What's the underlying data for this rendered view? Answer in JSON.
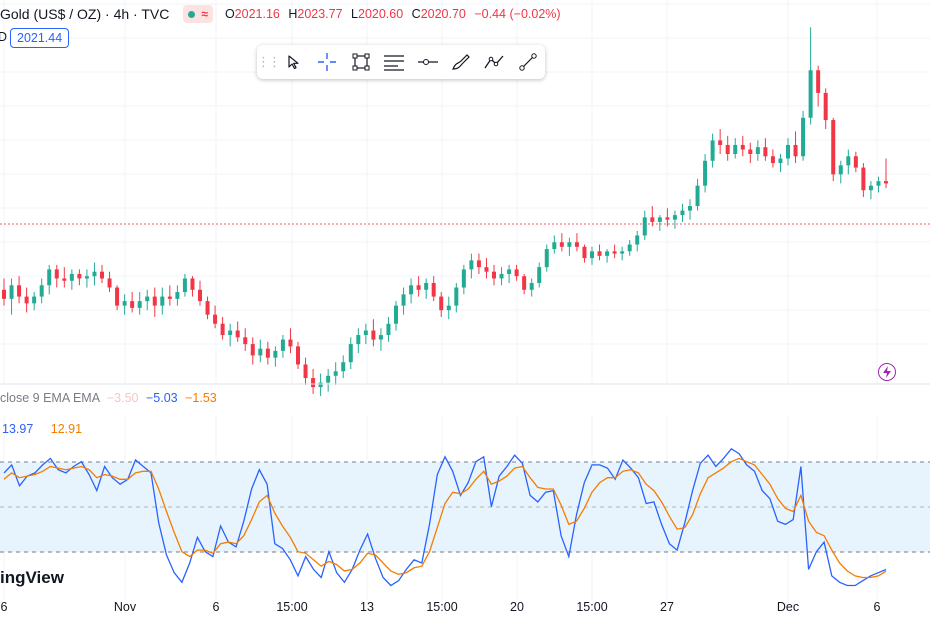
{
  "header": {
    "symbol_title": "Gold (US$ / OZ) · 4h · TVC",
    "ohlc": [
      {
        "k": "O",
        "v": "2021.16"
      },
      {
        "k": "H",
        "v": "2023.77"
      },
      {
        "k": "L",
        "v": "2020.60"
      },
      {
        "k": "C",
        "v": "2020.70"
      }
    ],
    "change": "−0.44 (−0.02%)",
    "last_price_prefix": "D",
    "last_price_tag": "2021.44"
  },
  "toolbar": {
    "tools": [
      "cursor-arrow-icon",
      "crosshair-icon",
      "rectangle-icon",
      "fib-levels-icon",
      "horizontal-ray-icon",
      "brush-icon",
      "path-icon",
      "trend-line-icon"
    ]
  },
  "indicator": {
    "legend_label": "close 9 EMA EMA",
    "legend_values": [
      "−3.50",
      "−5.03",
      "−1.53"
    ],
    "current_k": "13.97",
    "current_d": "12.91"
  },
  "brand": "ingView",
  "x_axis": {
    "labels": [
      "6",
      "Nov",
      "6",
      "15:00",
      "13",
      "15:00",
      "20",
      "15:00",
      "27",
      "Dec",
      "6"
    ]
  },
  "colors": {
    "up": "#22ab94",
    "down": "#f23645",
    "k_line": "#2962ff",
    "d_line": "#f57c00",
    "band_fill": "#e3f2fd",
    "accent": "#2962ff"
  },
  "chart_data": [
    {
      "type": "candlestick",
      "title": "Gold (US$ / OZ) · 4h · TVC",
      "grid": true,
      "ylim": [
        1938,
        2090
      ],
      "current_price": 2020.7,
      "candles": [
        [
          1973,
          1978,
          1966,
          1969
        ],
        [
          1969,
          1978,
          1962,
          1975
        ],
        [
          1975,
          1979,
          1967,
          1970
        ],
        [
          1970,
          1974,
          1963,
          1967
        ],
        [
          1967,
          1972,
          1964,
          1970
        ],
        [
          1970,
          1978,
          1967,
          1975
        ],
        [
          1975,
          1984,
          1971,
          1982
        ],
        [
          1982,
          1984,
          1974,
          1978
        ],
        [
          1978,
          1983,
          1974,
          1977
        ],
        [
          1977,
          1982,
          1973,
          1980
        ],
        [
          1980,
          1982,
          1975,
          1978
        ],
        [
          1978,
          1982,
          1974,
          1979
        ],
        [
          1979,
          1985,
          1975,
          1981
        ],
        [
          1981,
          1984,
          1976,
          1978
        ],
        [
          1978,
          1981,
          1972,
          1974
        ],
        [
          1974,
          1975,
          1964,
          1966
        ],
        [
          1966,
          1971,
          1962,
          1968
        ],
        [
          1968,
          1972,
          1963,
          1965
        ],
        [
          1965,
          1972,
          1962,
          1968
        ],
        [
          1968,
          1973,
          1964,
          1970
        ],
        [
          1970,
          1974,
          1961,
          1966
        ],
        [
          1966,
          1974,
          1962,
          1970
        ],
        [
          1970,
          1975,
          1966,
          1969
        ],
        [
          1969,
          1975,
          1966,
          1972
        ],
        [
          1972,
          1980,
          1970,
          1978
        ],
        [
          1978,
          1979,
          1970,
          1973
        ],
        [
          1973,
          1977,
          1966,
          1968
        ],
        [
          1968,
          1970,
          1960,
          1962
        ],
        [
          1962,
          1966,
          1956,
          1958
        ],
        [
          1958,
          1961,
          1951,
          1953
        ],
        [
          1953,
          1958,
          1948,
          1955
        ],
        [
          1955,
          1959,
          1950,
          1952
        ],
        [
          1952,
          1956,
          1946,
          1949
        ],
        [
          1949,
          1952,
          1940,
          1944
        ],
        [
          1944,
          1951,
          1941,
          1947
        ],
        [
          1947,
          1950,
          1940,
          1943
        ],
        [
          1943,
          1948,
          1939,
          1946
        ],
        [
          1946,
          1953,
          1943,
          1951
        ],
        [
          1951,
          1956,
          1945,
          1948
        ],
        [
          1948,
          1950,
          1938,
          1940
        ],
        [
          1940,
          1943,
          1931,
          1934
        ],
        [
          1934,
          1938,
          1927,
          1930
        ],
        [
          1930,
          1936,
          1926,
          1932
        ],
        [
          1932,
          1938,
          1928,
          1935
        ],
        [
          1935,
          1941,
          1931,
          1937
        ],
        [
          1937,
          1944,
          1934,
          1941
        ],
        [
          1941,
          1952,
          1938,
          1949
        ],
        [
          1949,
          1956,
          1945,
          1953
        ],
        [
          1953,
          1958,
          1949,
          1955
        ],
        [
          1955,
          1960,
          1948,
          1951
        ],
        [
          1951,
          1956,
          1946,
          1953
        ],
        [
          1953,
          1961,
          1950,
          1958
        ],
        [
          1958,
          1968,
          1955,
          1966
        ],
        [
          1966,
          1974,
          1962,
          1971
        ],
        [
          1971,
          1978,
          1967,
          1975
        ],
        [
          1975,
          1979,
          1970,
          1973
        ],
        [
          1973,
          1978,
          1969,
          1976
        ],
        [
          1976,
          1979,
          1968,
          1970
        ],
        [
          1970,
          1972,
          1961,
          1964
        ],
        [
          1964,
          1970,
          1960,
          1966
        ],
        [
          1966,
          1976,
          1963,
          1974
        ],
        [
          1974,
          1984,
          1971,
          1982
        ],
        [
          1982,
          1989,
          1978,
          1986
        ],
        [
          1986,
          1989,
          1980,
          1983
        ],
        [
          1983,
          1987,
          1978,
          1981
        ],
        [
          1981,
          1984,
          1975,
          1978
        ],
        [
          1978,
          1983,
          1975,
          1980
        ],
        [
          1980,
          1984,
          1976,
          1982
        ],
        [
          1982,
          1984,
          1977,
          1979
        ],
        [
          1979,
          1980,
          1971,
          1973
        ],
        [
          1973,
          1978,
          1970,
          1976
        ],
        [
          1976,
          1985,
          1974,
          1983
        ],
        [
          1983,
          1993,
          1981,
          1991
        ],
        [
          1991,
          1997,
          1989,
          1994
        ],
        [
          1994,
          1998,
          1990,
          1992
        ],
        [
          1992,
          1996,
          1988,
          1994
        ],
        [
          1994,
          1998,
          1990,
          1992
        ],
        [
          1992,
          1993,
          1985,
          1987
        ],
        [
          1987,
          1992,
          1984,
          1990
        ],
        [
          1990,
          1993,
          1986,
          1988
        ],
        [
          1988,
          1991,
          1985,
          1990
        ],
        [
          1990,
          1993,
          1987,
          1989
        ],
        [
          1989,
          1992,
          1986,
          1990
        ],
        [
          1990,
          1995,
          1988,
          1993
        ],
        [
          1993,
          1999,
          1990,
          1997
        ],
        [
          1997,
          2008,
          1995,
          2005
        ],
        [
          2005,
          2010,
          2001,
          2003
        ],
        [
          2003,
          2006,
          1999,
          2005
        ],
        [
          2005,
          2009,
          2001,
          2004
        ],
        [
          2004,
          2008,
          2000,
          2006
        ],
        [
          2006,
          2011,
          2003,
          2008
        ],
        [
          2008,
          2013,
          2004,
          2010
        ],
        [
          2010,
          2022,
          2008,
          2019
        ],
        [
          2019,
          2033,
          2016,
          2030
        ],
        [
          2030,
          2042,
          2027,
          2039
        ],
        [
          2039,
          2044,
          2033,
          2037
        ],
        [
          2037,
          2041,
          2030,
          2033
        ],
        [
          2033,
          2040,
          2031,
          2037
        ],
        [
          2037,
          2041,
          2032,
          2035
        ],
        [
          2035,
          2038,
          2029,
          2033
        ],
        [
          2033,
          2039,
          2030,
          2036
        ],
        [
          2036,
          2040,
          2030,
          2032
        ],
        [
          2032,
          2035,
          2027,
          2029
        ],
        [
          2029,
          2033,
          2025,
          2031
        ],
        [
          2031,
          2040,
          2028,
          2037
        ],
        [
          2037,
          2043,
          2029,
          2032
        ],
        [
          2032,
          2052,
          2030,
          2049
        ],
        [
          2049,
          2089,
          2046,
          2070
        ],
        [
          2070,
          2072,
          2054,
          2060
        ],
        [
          2060,
          2062,
          2044,
          2048
        ],
        [
          2048,
          2049,
          2021,
          2024
        ],
        [
          2024,
          2030,
          2020,
          2028
        ],
        [
          2028,
          2035,
          2024,
          2032
        ],
        [
          2032,
          2034,
          2025,
          2027
        ],
        [
          2027,
          2029,
          2014,
          2017
        ],
        [
          2017,
          2021,
          2013,
          2019
        ],
        [
          2019,
          2023,
          2016,
          2021
        ],
        [
          2021,
          2031,
          2018,
          2020
        ]
      ]
    },
    {
      "type": "line",
      "title": "close 9 EMA EMA",
      "ylim": [
        -5,
        110
      ],
      "bands": [
        20,
        50,
        80
      ],
      "series": [
        {
          "values": [
            74,
            79,
            66,
            72,
            74,
            79,
            83,
            76,
            74,
            78,
            81,
            73,
            63,
            78,
            71,
            67,
            70,
            82,
            78,
            74,
            43,
            23,
            12,
            6,
            18,
            34,
            25,
            22,
            41,
            31,
            28,
            44,
            64,
            76,
            67,
            30,
            27,
            20,
            10,
            22,
            14,
            9,
            25,
            12,
            6,
            14,
            26,
            36,
            21,
            9,
            4,
            7,
            14,
            20,
            18,
            42,
            73,
            84,
            75,
            60,
            68,
            81,
            84,
            53,
            72,
            78,
            85,
            80,
            60,
            56,
            62,
            63,
            35,
            22,
            48,
            68,
            79,
            79,
            77,
            70,
            82,
            77,
            71,
            55,
            56,
            42,
            30,
            26,
            43,
            63,
            80,
            85,
            78,
            83,
            89,
            86,
            79,
            75,
            63,
            58,
            44,
            42,
            45,
            78,
            14,
            25,
            31,
            10,
            6,
            4,
            4,
            7,
            10,
            12,
            13.97
          ]
        },
        {
          "values": [
            70,
            74,
            71,
            72,
            73,
            75,
            78,
            77,
            76,
            77,
            78,
            76,
            71,
            73,
            72,
            70,
            70,
            74,
            75,
            75,
            64,
            50,
            37,
            25,
            22,
            26,
            26,
            24,
            30,
            31,
            30,
            35,
            45,
            56,
            60,
            49,
            41,
            34,
            25,
            24,
            20,
            16,
            19,
            17,
            13,
            14,
            18,
            24,
            23,
            18,
            13,
            11,
            12,
            15,
            16,
            25,
            40,
            55,
            62,
            61,
            64,
            70,
            75,
            67,
            69,
            72,
            77,
            78,
            71,
            65,
            64,
            64,
            54,
            42,
            44,
            52,
            62,
            68,
            71,
            71,
            75,
            76,
            74,
            67,
            63,
            56,
            47,
            39,
            40,
            48,
            61,
            71,
            74,
            77,
            81,
            83,
            81,
            79,
            73,
            67,
            58,
            52,
            50,
            60,
            44,
            37,
            35,
            26,
            18,
            13,
            10,
            9,
            9,
            10,
            12.91
          ]
        }
      ]
    }
  ]
}
